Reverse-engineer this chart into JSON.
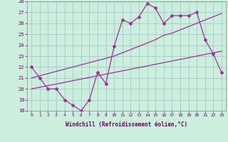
{
  "xlabel": "Windchill (Refroidissement éolien,°C)",
  "background_color": "#cceedd",
  "grid_color": "#aacccc",
  "line_color": "#993399",
  "hours": [
    0,
    1,
    2,
    3,
    4,
    5,
    6,
    7,
    8,
    9,
    10,
    11,
    12,
    13,
    14,
    15,
    16,
    17,
    18,
    19,
    20,
    21,
    22,
    23
  ],
  "windchill": [
    22,
    21,
    20,
    20,
    19,
    18.5,
    18,
    19,
    21.5,
    20.5,
    23.9,
    26.3,
    26,
    26.6,
    27.8,
    27.4,
    26,
    26.7,
    26.7,
    26.7,
    27,
    24.5,
    23.2,
    21.5
  ],
  "linear1": [
    20.0,
    20.15,
    20.3,
    20.45,
    20.6,
    20.75,
    20.9,
    21.05,
    21.2,
    21.35,
    21.5,
    21.65,
    21.8,
    21.95,
    22.1,
    22.25,
    22.4,
    22.55,
    22.7,
    22.85,
    23.0,
    23.15,
    23.3,
    23.45
  ],
  "linear2": [
    21.0,
    21.2,
    21.4,
    21.6,
    21.8,
    22.0,
    22.2,
    22.4,
    22.6,
    22.8,
    23.0,
    23.3,
    23.6,
    23.9,
    24.2,
    24.5,
    24.9,
    25.1,
    25.4,
    25.7,
    26.0,
    26.3,
    26.6,
    26.9
  ],
  "ylim": [
    18,
    28
  ],
  "yticks": [
    18,
    19,
    20,
    21,
    22,
    23,
    24,
    25,
    26,
    27,
    28
  ],
  "xlim": [
    -0.5,
    23.5
  ]
}
